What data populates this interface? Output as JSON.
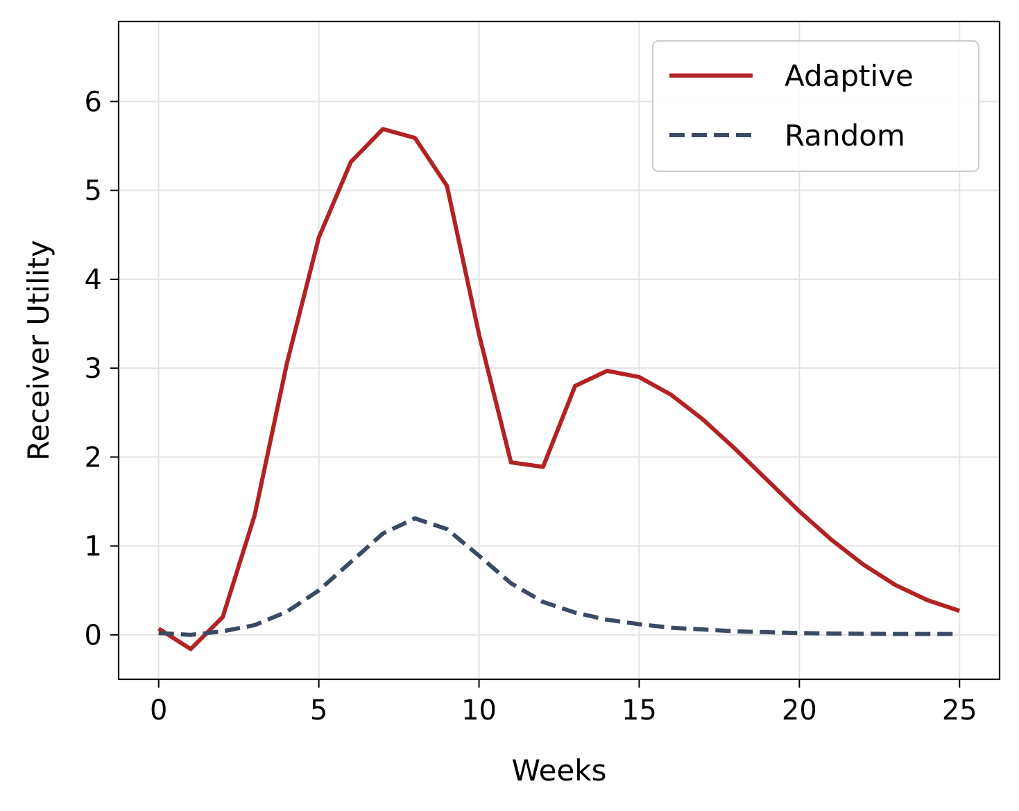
{
  "chart_data": {
    "type": "line",
    "title": "",
    "xlabel": "Weeks",
    "ylabel": "Receiver Utility",
    "xlim": [
      -1.25,
      26.25
    ],
    "ylim": [
      -0.5,
      6.9
    ],
    "xticks": [
      0,
      5,
      10,
      15,
      20,
      25
    ],
    "yticks": [
      0,
      1,
      2,
      3,
      4,
      5,
      6
    ],
    "grid": true,
    "legend_position": "top-right",
    "x": [
      0,
      1,
      2,
      3,
      4,
      5,
      6,
      7,
      8,
      9,
      10,
      11,
      12,
      13,
      14,
      15,
      16,
      17,
      18,
      19,
      20,
      21,
      22,
      23,
      24,
      25
    ],
    "series": [
      {
        "name": "Adaptive",
        "color": "#b22222",
        "style": "solid",
        "values": [
          0.07,
          -0.16,
          0.2,
          1.35,
          3.05,
          4.47,
          5.32,
          5.69,
          5.59,
          5.05,
          3.38,
          1.94,
          1.89,
          2.8,
          2.97,
          2.9,
          2.7,
          2.42,
          2.09,
          1.74,
          1.39,
          1.07,
          0.79,
          0.56,
          0.39,
          0.27
        ]
      },
      {
        "name": "Random",
        "color": "#3b4a63",
        "style": "dashed",
        "values": [
          0.02,
          0.0,
          0.04,
          0.11,
          0.26,
          0.5,
          0.82,
          1.14,
          1.31,
          1.19,
          0.89,
          0.58,
          0.37,
          0.25,
          0.17,
          0.12,
          0.08,
          0.06,
          0.04,
          0.03,
          0.02,
          0.015,
          0.012,
          0.01,
          0.01,
          0.01
        ]
      }
    ]
  }
}
